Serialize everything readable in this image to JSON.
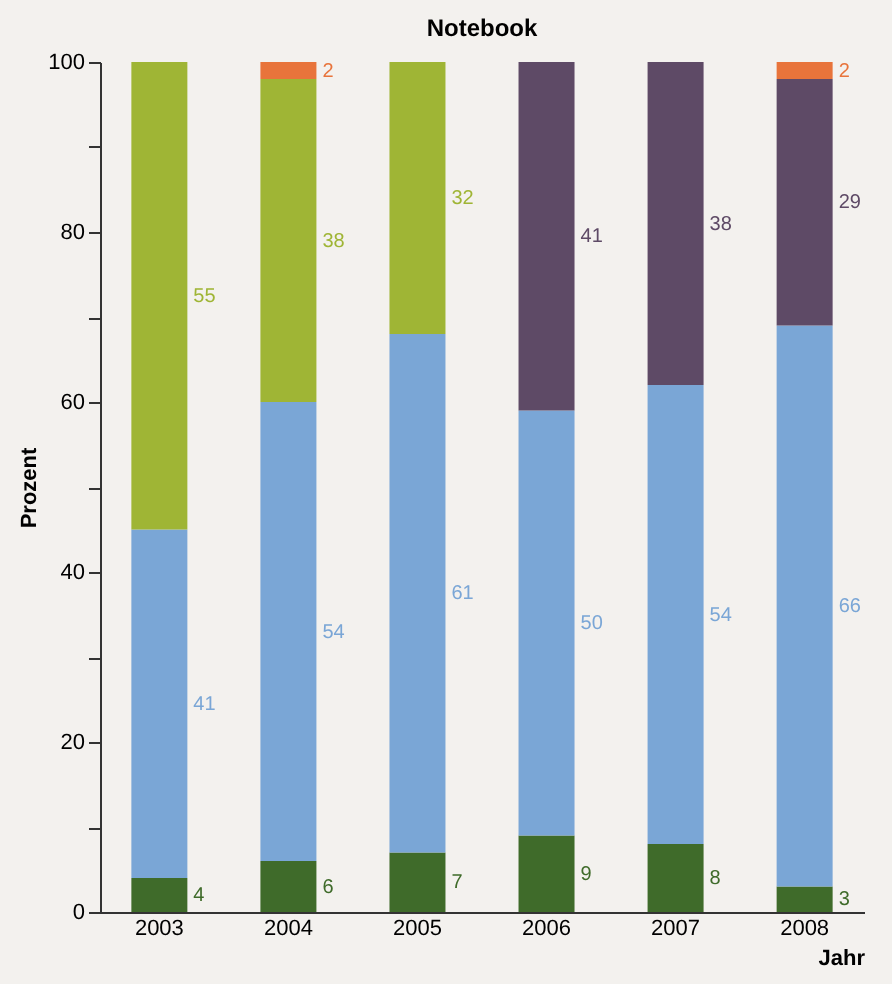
{
  "chart_data": {
    "type": "bar",
    "title": "Notebook",
    "xlabel": "Jahr",
    "ylabel": "Prozent",
    "categories": [
      "2003",
      "2004",
      "2005",
      "2006",
      "2007",
      "2008"
    ],
    "stacked": true,
    "data_labels": true,
    "legend": false,
    "grid": false,
    "ylim": [
      0,
      100
    ],
    "yticks": [
      0,
      {
        "value": 10,
        "label": null
      },
      20,
      {
        "value": 30,
        "label": null
      },
      40,
      {
        "value": 50,
        "label": null
      },
      60,
      {
        "value": 70,
        "label": null
      },
      80,
      {
        "value": 90,
        "label": null
      },
      100
    ],
    "series": [
      {
        "color": "#3f6b2a",
        "values": [
          4,
          6,
          7,
          9,
          8,
          3
        ]
      },
      {
        "color": "#7aa6d6",
        "values": [
          41,
          54,
          61,
          50,
          54,
          66
        ]
      },
      {
        "color": "#9fb535",
        "values": [
          55,
          38,
          32,
          null,
          null,
          null
        ]
      },
      {
        "color": "#5e4a66",
        "values": [
          null,
          null,
          null,
          41,
          38,
          29
        ]
      },
      {
        "color": "#e8743b",
        "values": [
          null,
          2,
          null,
          null,
          null,
          2
        ]
      }
    ]
  }
}
